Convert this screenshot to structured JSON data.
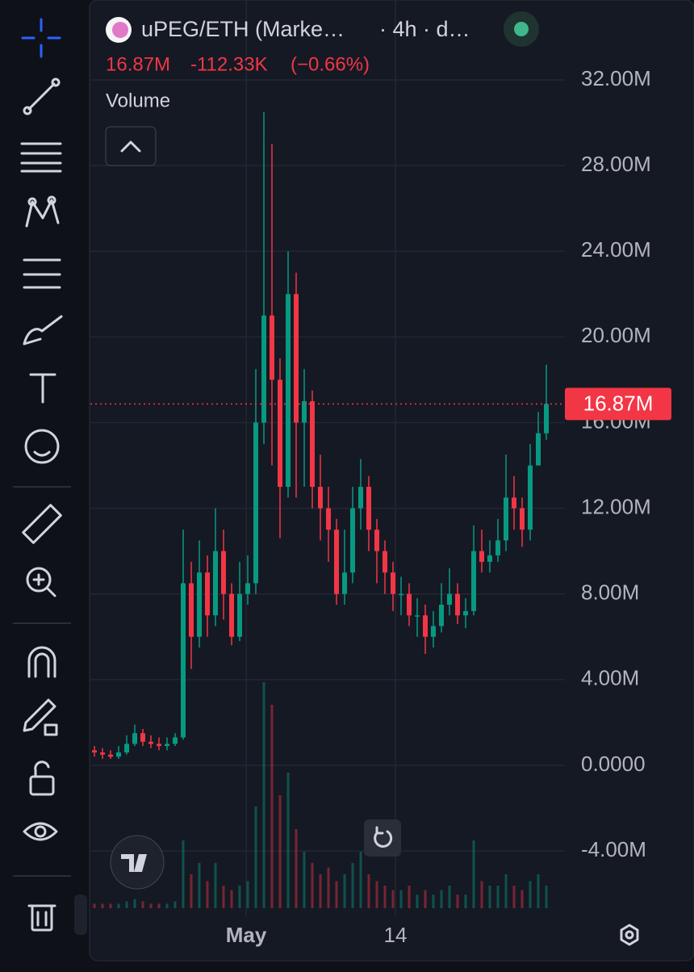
{
  "header": {
    "symbol": "uPEG/ETH (Marke…",
    "interval": "· 4h · d…",
    "price": "16.87M",
    "change": "-112.33K",
    "change_pct": "(−0.66%)",
    "indicator": "Volume"
  },
  "chart_data": {
    "type": "candlestick",
    "up_color": "#089981",
    "down_color": "#f23645",
    "open": [
      0.7,
      0.6,
      0.5,
      0.4,
      0.6,
      1.0,
      1.5,
      1.1,
      1.0,
      0.9,
      1.0,
      1.3,
      8.5,
      6.0,
      9.0,
      7.0,
      10.0,
      8.0,
      6.0,
      8.0,
      8.5,
      16.0,
      21.0,
      18.0,
      13.0,
      22.0,
      16.0,
      17.0,
      13.0,
      12.0,
      11.0,
      8.0,
      9.0,
      12.0,
      13.0,
      11.0,
      10.0,
      9.0,
      8.0,
      8.0,
      7.0,
      7.0,
      6.0,
      6.5,
      7.5,
      8.0,
      7.0,
      7.2,
      10.0,
      9.5,
      9.8,
      10.5,
      12.5,
      12.0,
      11.0,
      14.0,
      15.5
    ],
    "high": [
      0.9,
      0.8,
      0.7,
      0.9,
      1.4,
      1.9,
      1.7,
      1.4,
      1.3,
      1.3,
      1.5,
      11.0,
      9.5,
      10.5,
      9.8,
      12.0,
      11.0,
      8.5,
      9.5,
      9.8,
      18.5,
      30.5,
      29.0,
      19.0,
      24.0,
      23.0,
      18.5,
      17.5,
      14.5,
      13.0,
      11.5,
      11.0,
      13.0,
      14.3,
      13.5,
      11.5,
      10.5,
      9.5,
      8.8,
      8.5,
      7.8,
      7.5,
      7.2,
      8.5,
      9.2,
      8.5,
      7.8,
      11.2,
      11.0,
      10.5,
      11.5,
      14.5,
      13.5,
      12.5,
      15.0,
      16.5,
      18.7
    ],
    "low": [
      0.4,
      0.3,
      0.3,
      0.3,
      0.5,
      0.9,
      0.9,
      0.8,
      0.7,
      0.7,
      0.9,
      1.2,
      4.5,
      5.5,
      6.0,
      6.5,
      6.8,
      5.6,
      5.8,
      7.5,
      8.0,
      15.0,
      14.0,
      10.6,
      12.5,
      12.5,
      13.0,
      12.0,
      10.5,
      9.5,
      7.5,
      7.5,
      8.5,
      11.0,
      10.0,
      8.5,
      8.0,
      7.2,
      7.0,
      6.5,
      6.0,
      5.2,
      5.5,
      6.2,
      7.0,
      6.6,
      6.4,
      7.0,
      9.0,
      9.0,
      9.5,
      10.0,
      11.0,
      10.2,
      10.5,
      14.0,
      15.2
    ],
    "close": [
      0.6,
      0.5,
      0.4,
      0.6,
      1.0,
      1.5,
      1.1,
      1.0,
      0.9,
      1.0,
      1.3,
      8.5,
      6.0,
      9.0,
      7.0,
      10.0,
      8.0,
      6.0,
      8.0,
      8.5,
      16.0,
      21.0,
      18.0,
      13.0,
      22.0,
      16.0,
      17.0,
      13.0,
      12.0,
      11.0,
      8.0,
      9.0,
      12.0,
      13.0,
      11.0,
      10.0,
      9.0,
      8.0,
      8.0,
      7.0,
      7.0,
      6.0,
      6.5,
      7.5,
      8.0,
      7.0,
      7.2,
      10.0,
      9.5,
      9.8,
      10.5,
      12.5,
      12.0,
      11.0,
      14.0,
      15.5,
      16.87
    ],
    "volume": [
      2,
      2,
      2,
      2,
      3,
      4,
      3,
      2,
      2,
      2,
      3,
      30,
      15,
      20,
      12,
      20,
      10,
      8,
      10,
      12,
      45,
      100,
      90,
      50,
      60,
      35,
      25,
      20,
      15,
      18,
      12,
      15,
      20,
      25,
      15,
      12,
      10,
      8,
      8,
      10,
      6,
      8,
      6,
      8,
      10,
      6,
      6,
      30,
      12,
      10,
      10,
      15,
      10,
      8,
      12,
      15,
      10
    ],
    "vlim": [
      0,
      100
    ],
    "xlim": [
      -0.5,
      58.3
    ],
    "xticks": [
      {
        "value": 18.8,
        "label": "May"
      },
      {
        "value": 37.3,
        "label": "14"
      }
    ],
    "ylim": [
      -7.05,
      35.73
    ],
    "yticks": [
      {
        "value": 32,
        "label": "32.00M"
      },
      {
        "value": 28,
        "label": "28.00M"
      },
      {
        "value": 24,
        "label": "24.00M"
      },
      {
        "value": 20,
        "label": "20.00M"
      },
      {
        "value": 16,
        "label": "16.00M"
      },
      {
        "value": 12,
        "label": "12.00M"
      },
      {
        "value": 8,
        "label": "8.00M"
      },
      {
        "value": 4,
        "label": "4.00M"
      },
      {
        "value": 0,
        "label": "0.0000"
      },
      {
        "value": -4,
        "label": "-4.00M"
      }
    ],
    "last_price": {
      "value": 16.87,
      "label": "16.87M"
    },
    "grid": true
  }
}
